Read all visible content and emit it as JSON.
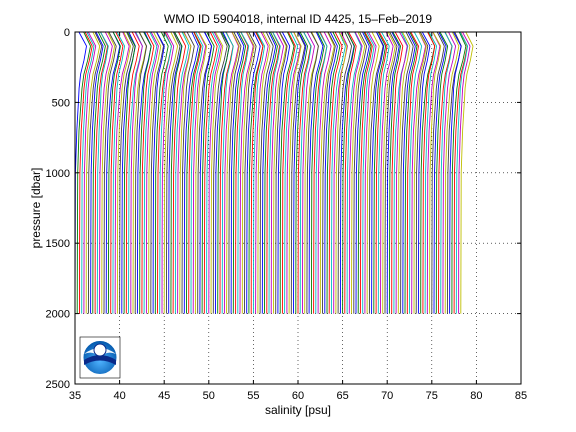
{
  "chart_data": {
    "type": "line",
    "title": "WMO ID 5904018, internal ID 4425, 15–Feb–2019",
    "xlabel": "salinity [psu]",
    "ylabel": "pressure [dbar]",
    "xlim": [
      35,
      85
    ],
    "ylim": [
      0,
      2500
    ],
    "y_reversed": true,
    "xticks": [
      "35",
      "40",
      "45",
      "50",
      "55",
      "60",
      "65",
      "70",
      "75",
      "80",
      "85"
    ],
    "yticks": [
      "0",
      "500",
      "1000",
      "1500",
      "2000",
      "2500"
    ],
    "grid": "dotted",
    "series_description": "waterfall of offset salinity profiles, each shifted by 0.25 psu",
    "profile_count": 174,
    "profile_offset_psu": 0.25,
    "profile_base_salinity": 34.7,
    "profile_shape": {
      "pressure": [
        0,
        50,
        100,
        200,
        300,
        400,
        500,
        700,
        1000,
        1500,
        2000
      ],
      "salinity_anomaly": [
        0.9,
        1.3,
        1.7,
        1.4,
        1.0,
        0.8,
        0.7,
        0.5,
        0.35,
        0.32,
        0.3
      ]
    },
    "colors": [
      "#0000ff",
      "#008000",
      "#ff0000",
      "#00bfbf",
      "#bf00bf",
      "#bfbf00",
      "#404040"
    ],
    "logo": "noaa-logo"
  }
}
